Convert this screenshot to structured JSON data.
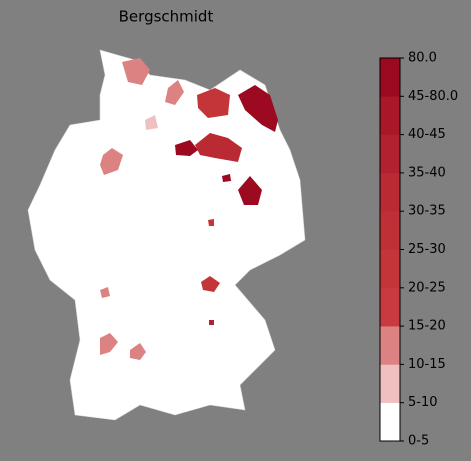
{
  "title": "Bergschmidt",
  "colorbar": {
    "labels": [
      "0-5",
      "5-10",
      "10-15",
      "15-20",
      "20-25",
      "25-30",
      "30-35",
      "35-40",
      "40-45",
      "45-80.0",
      "80.0"
    ],
    "colors": [
      "#ffffff",
      "#f0c0c0",
      "#dc8282",
      "#c83a3f",
      "#c43539",
      "#bf3036",
      "#b92a33",
      "#b2212f",
      "#a91728",
      "#9b0a20"
    ]
  }
}
